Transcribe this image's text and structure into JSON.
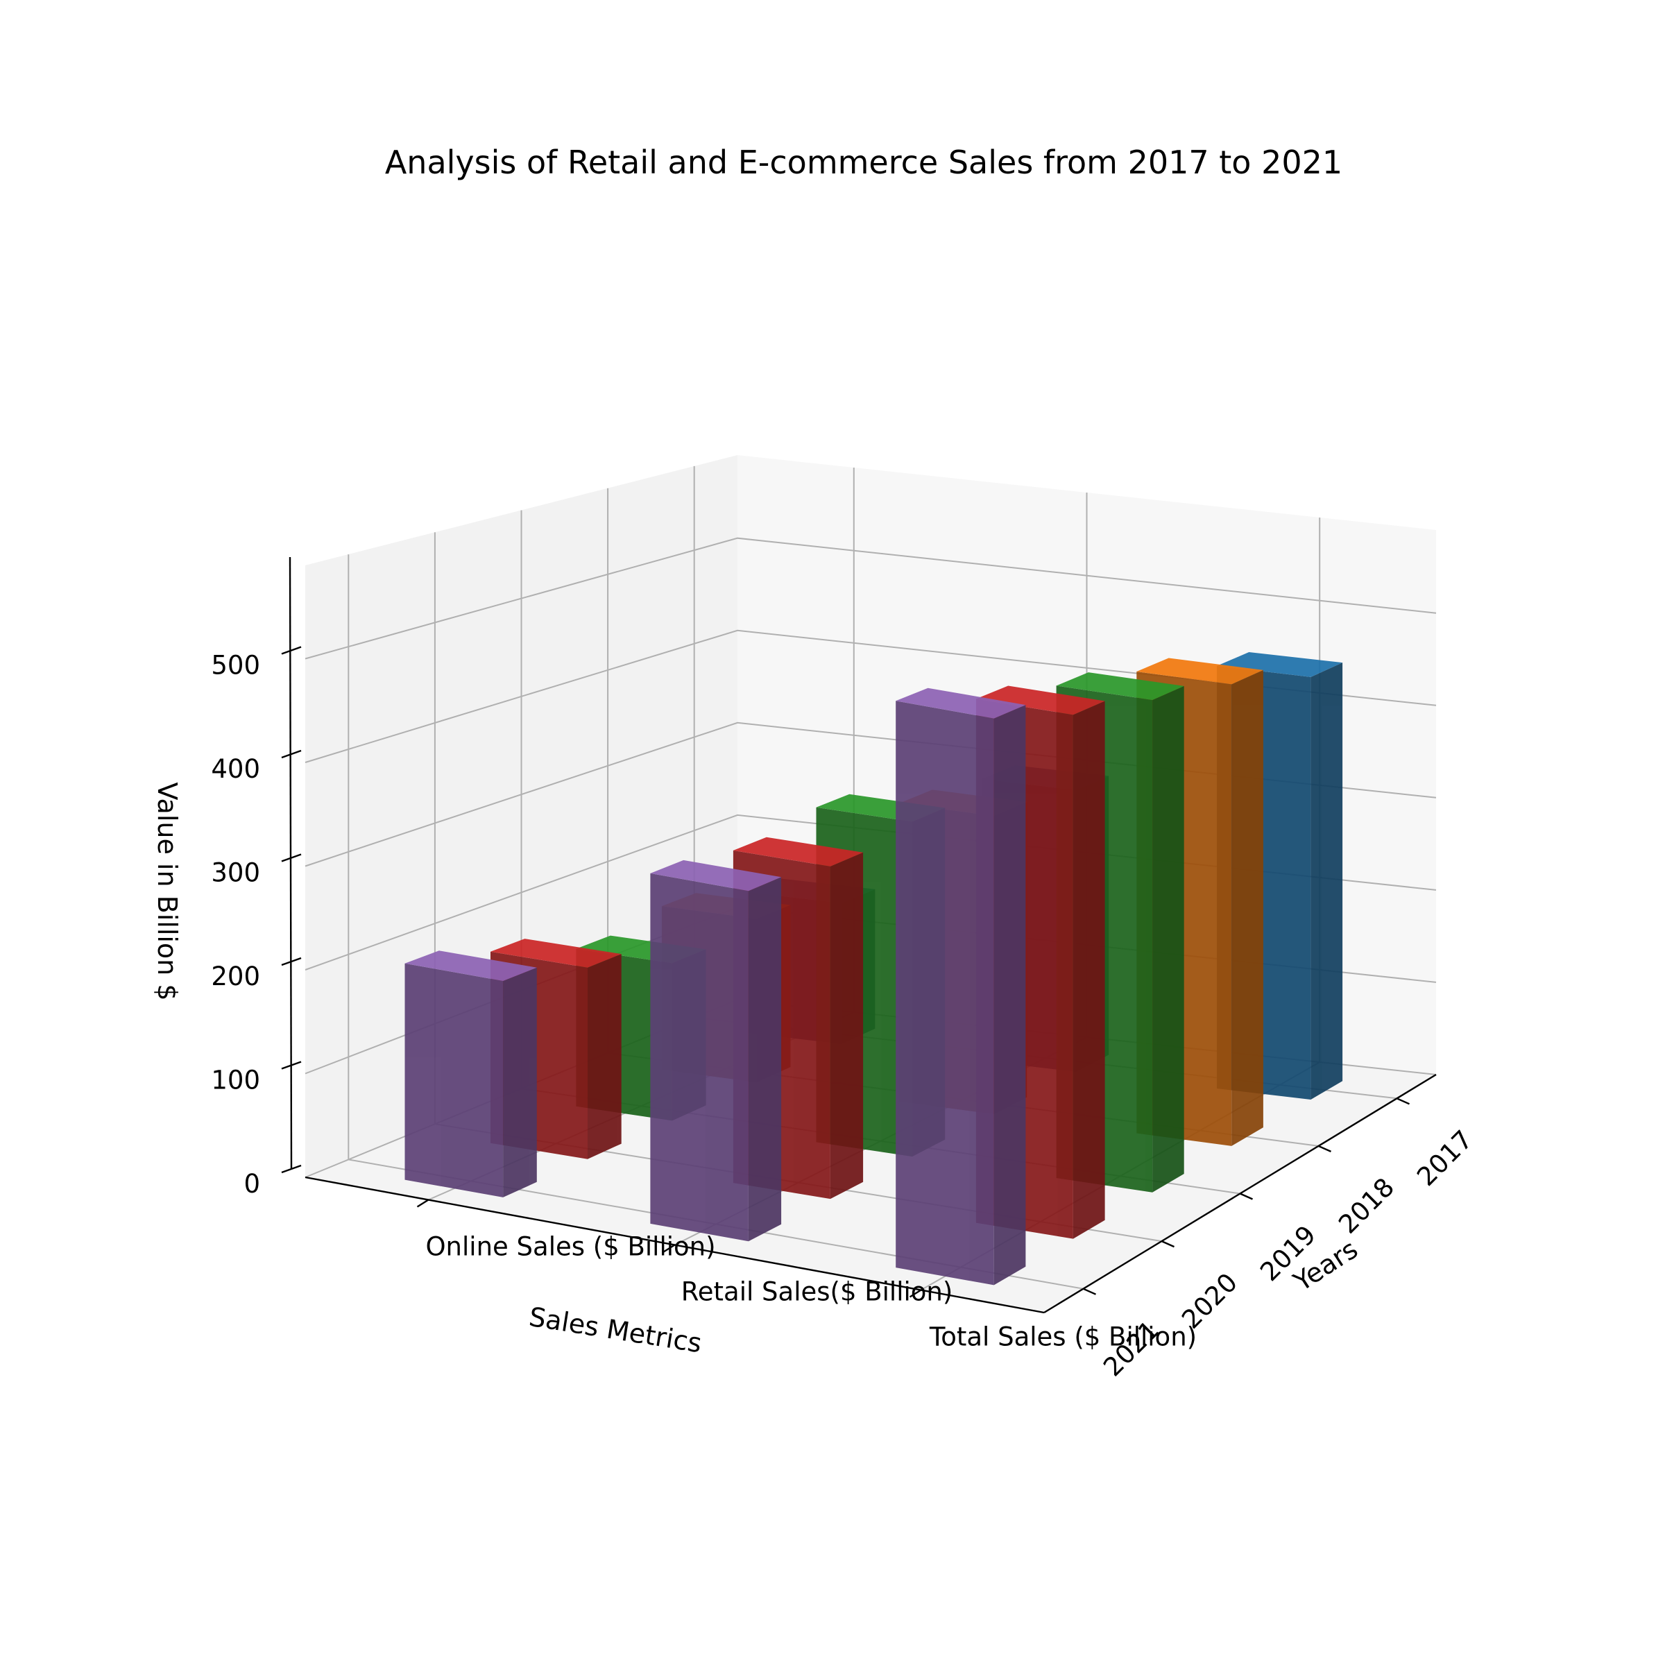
{
  "chart_data": {
    "type": "bar",
    "title": "Analysis of Retail and E-commerce Sales from 2017 to 2021",
    "xlabel": "Sales Metrics",
    "ylabel": "Years",
    "zlabel": "Value in Billion $",
    "categories": [
      "Online Sales ($ Billion)",
      "Retail Sales($ Billion)",
      "Total Sales ($ Billion)"
    ],
    "years": [
      "2017",
      "2018",
      "2019",
      "2020",
      "2021"
    ],
    "zticks": [
      "0",
      "100",
      "200",
      "300",
      "400",
      "500"
    ],
    "zlim": [
      0,
      590
    ],
    "grid": true,
    "series": [
      {
        "name": "2017",
        "color": "#1f77b4",
        "values": [
          150,
          300,
          450
        ]
      },
      {
        "name": "2018",
        "color": "#ff7f0e",
        "values": [
          170,
          310,
          480
        ]
      },
      {
        "name": "2019",
        "color": "#2ca02c",
        "values": [
          160,
          340,
          500
        ]
      },
      {
        "name": "2020",
        "color": "#d62728",
        "values": [
          190,
          330,
          520
        ]
      },
      {
        "name": "2021",
        "color": "#9467bd",
        "values": [
          210,
          340,
          550
        ]
      }
    ]
  }
}
